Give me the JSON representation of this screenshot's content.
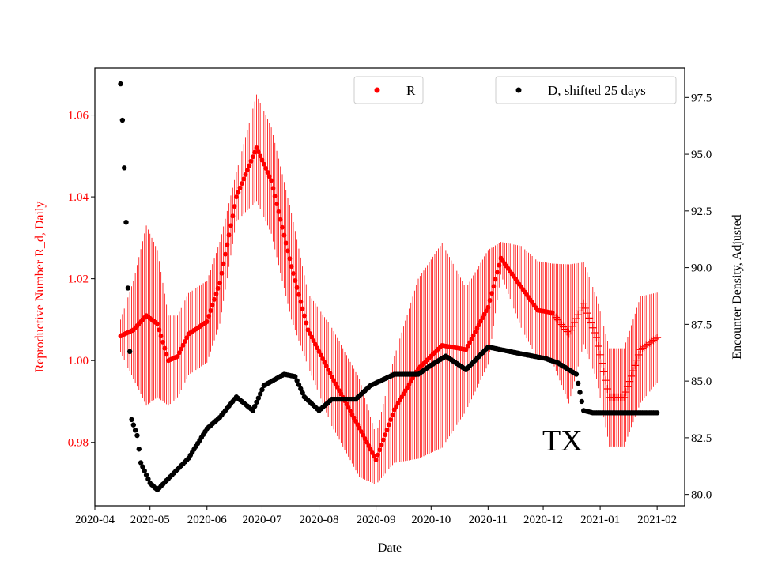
{
  "chart_data": {
    "type": "scatter",
    "annotation": "TX",
    "x_origin": "2020-04-01",
    "xlabel": "Date",
    "ylabel_left": "Reproductive Number R_d, Daily",
    "ylabel_right": "Encounter Density, Adjusted",
    "x_ticks": [
      "2020-04",
      "2020-05",
      "2020-06",
      "2020-07",
      "2020-08",
      "2020-09",
      "2020-10",
      "2020-11",
      "2020-12",
      "2021-01",
      "2021-02"
    ],
    "x_tick_days": [
      0,
      30,
      61,
      91,
      122,
      153,
      183,
      214,
      244,
      275,
      306
    ],
    "xlim_days": [
      0,
      321
    ],
    "ylim_left": [
      0.9645,
      1.0715
    ],
    "yticks_left": [
      "0.98",
      "1.00",
      "1.02",
      "1.04",
      "1.06"
    ],
    "ylim_right": [
      79.5,
      98.8
    ],
    "yticks_right": [
      "80.0",
      "82.5",
      "85.0",
      "87.5",
      "90.0",
      "92.5",
      "95.0",
      "97.5"
    ],
    "legend": [
      {
        "label": "R",
        "color": "#ff0000",
        "placement": "top-center"
      },
      {
        "label": "D, shifted 25 days",
        "color": "#000000",
        "placement": "top-right"
      }
    ],
    "series": [
      {
        "name": "R",
        "axis": "left",
        "color": "#ff0000",
        "marker_change_day": 250,
        "points_day_value_err": [
          [
            14,
            1.006,
            0.004
          ],
          [
            21,
            1.0075,
            0.012
          ],
          [
            28,
            1.011,
            0.022
          ],
          [
            34,
            1.009,
            0.018
          ],
          [
            40,
            1.0,
            0.011
          ],
          [
            45,
            1.001,
            0.01
          ],
          [
            51,
            1.0065,
            0.01
          ],
          [
            61,
            1.0095,
            0.01
          ],
          [
            68,
            1.019,
            0.01
          ],
          [
            77,
            1.04,
            0.006
          ],
          [
            88,
            1.052,
            0.013
          ],
          [
            96,
            1.044,
            0.013
          ],
          [
            107,
            1.023,
            0.013
          ],
          [
            116,
            1.0075,
            0.009
          ],
          [
            129,
            0.996,
            0.012
          ],
          [
            144,
            0.9835,
            0.012
          ],
          [
            153,
            0.9757,
            0.006
          ],
          [
            163,
            0.988,
            0.013
          ],
          [
            176,
            0.998,
            0.022
          ],
          [
            189,
            1.0037,
            0.025
          ],
          [
            202,
            1.0027,
            0.015
          ],
          [
            214,
            1.013,
            0.014
          ],
          [
            221,
            1.025,
            0.004
          ],
          [
            232,
            1.018,
            0.01
          ],
          [
            241,
            1.0123,
            0.012
          ],
          [
            249,
            1.0117,
            0.012
          ],
          [
            258,
            1.0065,
            0.017
          ],
          [
            266,
            1.014,
            0.01
          ],
          [
            273,
            1.0056,
            0.01
          ],
          [
            280,
            0.991,
            0.012
          ],
          [
            288,
            0.991,
            0.012
          ],
          [
            297,
            1.0027,
            0.013
          ],
          [
            306,
            1.0056,
            0.011
          ]
        ]
      },
      {
        "name": "D, shifted 25 days",
        "axis": "right",
        "color": "#000000",
        "points_day_value": [
          [
            14,
            98.1
          ],
          [
            15,
            96.5
          ],
          [
            16,
            94.4
          ],
          [
            17,
            92.0
          ],
          [
            18,
            89.1
          ],
          [
            19,
            86.3
          ],
          [
            20,
            83.3
          ],
          [
            23,
            82.6
          ],
          [
            25,
            81.4
          ],
          [
            30,
            80.5
          ],
          [
            34,
            80.2
          ],
          [
            40,
            80.7
          ],
          [
            51,
            81.6
          ],
          [
            61,
            82.9
          ],
          [
            68,
            83.4
          ],
          [
            77,
            84.3
          ],
          [
            86,
            83.7
          ],
          [
            92,
            84.8
          ],
          [
            103,
            85.3
          ],
          [
            109,
            85.2
          ],
          [
            114,
            84.3
          ],
          [
            122,
            83.7
          ],
          [
            129,
            84.2
          ],
          [
            142,
            84.2
          ],
          [
            150,
            84.8
          ],
          [
            163,
            85.3
          ],
          [
            176,
            85.3
          ],
          [
            183,
            85.7
          ],
          [
            191,
            86.1
          ],
          [
            202,
            85.5
          ],
          [
            214,
            86.5
          ],
          [
            232,
            86.2
          ],
          [
            245,
            86.0
          ],
          [
            252,
            85.8
          ],
          [
            262,
            85.3
          ],
          [
            266,
            83.7
          ],
          [
            271,
            83.6
          ],
          [
            306,
            83.6
          ]
        ]
      }
    ]
  }
}
